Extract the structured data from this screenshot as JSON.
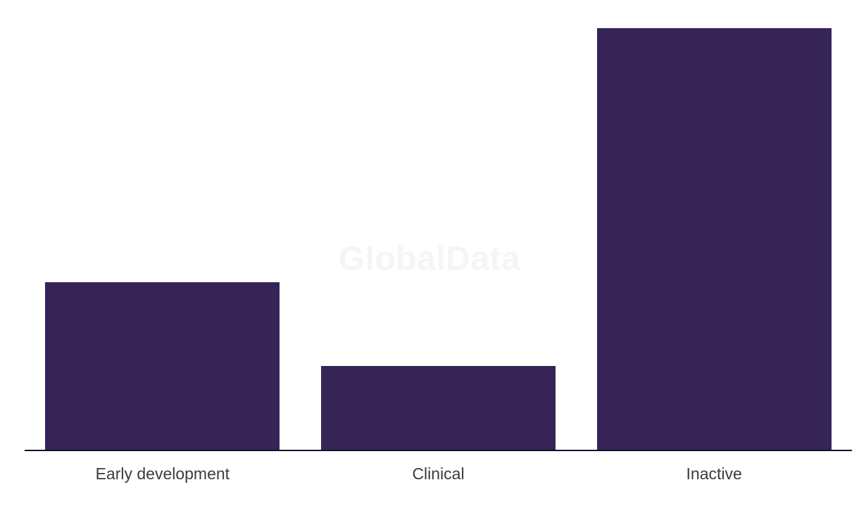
{
  "watermark": {
    "text": "GlobalData",
    "color": "#f5f5f5"
  },
  "chart_data": {
    "type": "bar",
    "title": "",
    "xlabel": "",
    "ylabel": "",
    "legend": "none",
    "grid": "off",
    "value_axis_shown": false,
    "categories": [
      "Early development",
      "Clinical",
      "Inactive"
    ],
    "values": [
      238,
      119,
      599
    ],
    "values_note": "relative bar heights in pixels; no numeric axis or data labels are rendered in the chart",
    "approx_ratio": [
      2,
      1,
      5
    ],
    "bar_color": "#362457",
    "axis_color": "#12122b",
    "label_color": "#3b3b3b",
    "background": "#ffffff"
  }
}
